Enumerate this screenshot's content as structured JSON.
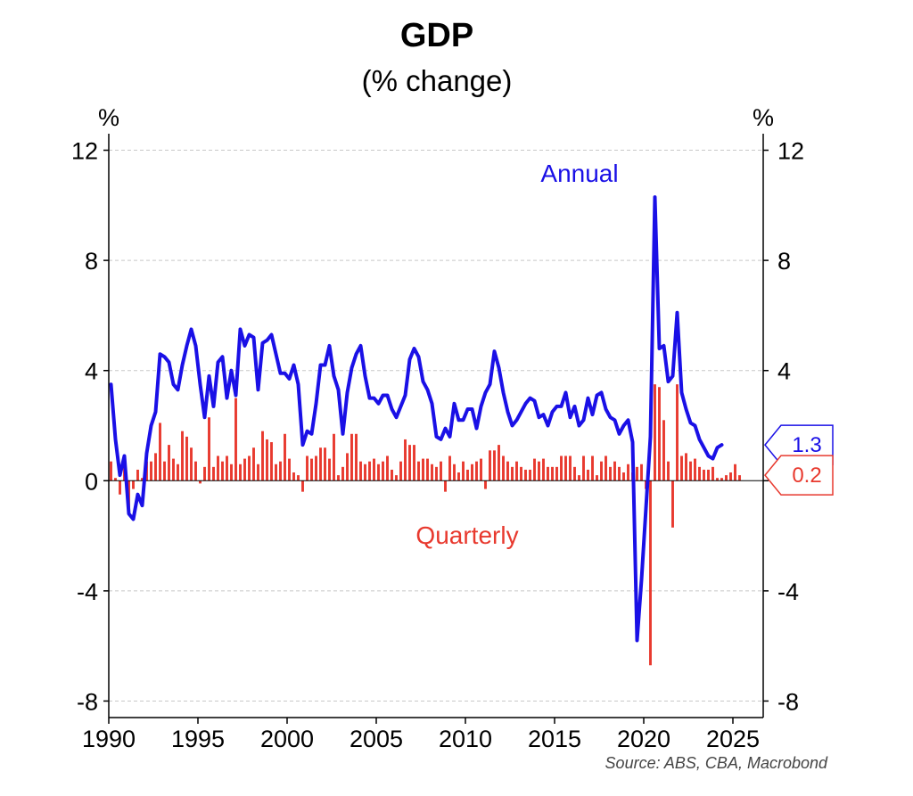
{
  "chart_data": {
    "type": "bar+line",
    "title": "GDP",
    "subtitle": "(% change)",
    "left_unit": "%",
    "right_unit": "%",
    "ylim": [
      -8.6,
      12.6
    ],
    "yticks": [
      12,
      8,
      4,
      0,
      -4,
      -8
    ],
    "ytick_labels": [
      "12",
      "8",
      "4",
      "0",
      "-4",
      "-8"
    ],
    "xlim": [
      1990,
      2026.7
    ],
    "xticks": [
      1990,
      1995,
      2000,
      2005,
      2010,
      2015,
      2020,
      2025
    ],
    "xtick_labels": [
      "1990",
      "1995",
      "2000",
      "2005",
      "2010",
      "2015",
      "2020",
      "2025"
    ],
    "grid": true,
    "source": "Source: ABS, CBA, Macrobond",
    "colors": {
      "annual": "#1a10e6",
      "quarterly": "#e8392e",
      "grid": "#c8c8c8"
    },
    "series": [
      {
        "name": "Annual",
        "type": "line",
        "start": 1990.0,
        "step": 0.25,
        "values": [
          3.5,
          1.5,
          0.2,
          0.9,
          -1.2,
          -1.4,
          -0.5,
          -0.9,
          1.0,
          2.0,
          2.5,
          4.6,
          4.5,
          4.3,
          3.5,
          3.3,
          4.2,
          4.9,
          5.5,
          4.9,
          3.5,
          2.3,
          3.8,
          2.7,
          4.3,
          4.5,
          3.0,
          4.0,
          3.1,
          5.5,
          4.9,
          5.3,
          5.2,
          3.3,
          5.0,
          5.1,
          5.3,
          4.6,
          3.9,
          3.9,
          3.7,
          4.2,
          3.5,
          1.3,
          1.8,
          1.7,
          2.8,
          4.2,
          4.2,
          4.9,
          3.8,
          3.3,
          1.7,
          3.2,
          4.1,
          4.6,
          4.9,
          3.8,
          3.0,
          3.0,
          2.8,
          3.1,
          3.1,
          2.6,
          2.3,
          2.7,
          3.1,
          4.4,
          4.8,
          4.5,
          3.6,
          3.3,
          2.8,
          1.6,
          1.5,
          1.9,
          1.6,
          2.8,
          2.2,
          2.2,
          2.6,
          2.6,
          1.9,
          2.7,
          3.2,
          3.5,
          4.7,
          4.1,
          3.2,
          2.5,
          2.0,
          2.2,
          2.5,
          2.8,
          3.0,
          2.9,
          2.3,
          2.4,
          2.0,
          2.5,
          2.7,
          2.7,
          3.2,
          2.3,
          2.7,
          2.0,
          2.2,
          3.0,
          2.4,
          3.1,
          3.2,
          2.6,
          2.3,
          2.2,
          1.7,
          2.0,
          2.2,
          1.4,
          -5.8,
          -3.6,
          -1.0,
          1.6,
          10.3,
          4.8,
          4.9,
          3.6,
          3.8,
          6.1,
          3.2,
          2.6,
          2.1,
          2.0,
          1.5,
          1.2,
          0.9,
          0.8,
          1.2,
          1.3
        ],
        "last_value_label": "1.3"
      },
      {
        "name": "Quarterly",
        "type": "bar",
        "start": 1990.0,
        "step": 0.25,
        "values": [
          0.7,
          0.1,
          -0.5,
          0.7,
          -1.1,
          -0.3,
          0.4,
          0.1,
          0.7,
          0.7,
          1.0,
          2.1,
          0.7,
          1.3,
          0.8,
          0.6,
          1.8,
          1.6,
          1.2,
          0.7,
          -0.1,
          0.5,
          2.3,
          0.5,
          0.9,
          0.7,
          0.9,
          0.6,
          3.0,
          0.6,
          0.8,
          0.9,
          1.2,
          0.6,
          1.8,
          1.5,
          1.4,
          0.6,
          0.7,
          1.7,
          0.8,
          0.3,
          0.2,
          -0.4,
          0.9,
          0.8,
          0.9,
          1.2,
          1.2,
          0.8,
          1.7,
          0.2,
          0.5,
          1.0,
          1.7,
          1.7,
          0.7,
          0.6,
          0.7,
          0.8,
          0.6,
          0.7,
          0.9,
          0.4,
          0.2,
          0.7,
          1.5,
          1.3,
          1.3,
          0.7,
          0.8,
          0.8,
          0.6,
          0.5,
          0.7,
          -0.4,
          0.9,
          0.6,
          0.3,
          0.7,
          0.4,
          0.6,
          0.7,
          0.8,
          -0.3,
          1.1,
          1.1,
          1.3,
          0.9,
          0.7,
          0.5,
          0.7,
          0.5,
          0.4,
          0.4,
          0.8,
          0.7,
          0.8,
          0.5,
          0.5,
          0.5,
          0.9,
          0.9,
          0.9,
          0.5,
          0.2,
          0.9,
          0.4,
          0.9,
          0.2,
          0.7,
          0.9,
          0.5,
          0.7,
          0.5,
          0.3,
          0.6,
          0.3,
          0.5,
          0.6,
          -0.3,
          -6.7,
          3.5,
          3.4,
          2.2,
          0.7,
          -1.7,
          3.5,
          0.9,
          1.0,
          0.7,
          0.8,
          0.5,
          0.4,
          0.4,
          0.5,
          0.1,
          0.1,
          0.2,
          0.3,
          0.6,
          0.2
        ],
        "last_value_label": "0.2"
      }
    ]
  }
}
